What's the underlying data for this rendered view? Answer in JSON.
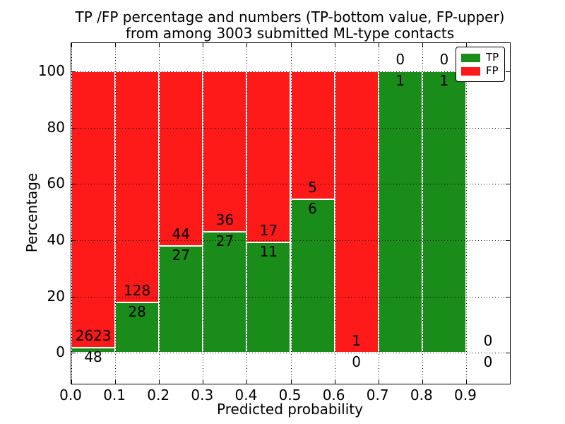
{
  "chart_data": {
    "type": "bar",
    "stacked": true,
    "percentage_scale": true,
    "title_line1": "TP /FP percentage and numbers (TP-bottom value, FP-upper)",
    "title_line2": "from among 3003 submitted ML-type contacts",
    "total_submitted_contacts": 3003,
    "xlabel": "Predicted probability",
    "ylabel": "Percentage",
    "xlim": [
      0.0,
      1.0
    ],
    "ylim": [
      -11,
      110
    ],
    "xticks": [
      "0.0",
      "0.1",
      "0.2",
      "0.3",
      "0.4",
      "0.5",
      "0.6",
      "0.7",
      "0.8",
      "0.9"
    ],
    "yticks": [
      0,
      20,
      40,
      60,
      80,
      100
    ],
    "grid": "dotted-black-over-bars",
    "bar_edge_color": "#ffffff",
    "legend": {
      "position": "upper-right",
      "entries": [
        {
          "label": "TP",
          "color": "#1a8c1a"
        },
        {
          "label": "FP",
          "color": "#ff1a1a"
        }
      ]
    },
    "bins": [
      {
        "range": [
          0.0,
          0.1
        ],
        "tp": 48,
        "fp": 2623,
        "tp_pct": 1.8
      },
      {
        "range": [
          0.1,
          0.2
        ],
        "tp": 28,
        "fp": 128,
        "tp_pct": 17.9
      },
      {
        "range": [
          0.2,
          0.3
        ],
        "tp": 27,
        "fp": 44,
        "tp_pct": 38.0
      },
      {
        "range": [
          0.3,
          0.4
        ],
        "tp": 27,
        "fp": 36,
        "tp_pct": 42.9
      },
      {
        "range": [
          0.4,
          0.5
        ],
        "tp": 11,
        "fp": 17,
        "tp_pct": 39.3
      },
      {
        "range": [
          0.5,
          0.6
        ],
        "tp": 6,
        "fp": 5,
        "tp_pct": 54.5
      },
      {
        "range": [
          0.6,
          0.7
        ],
        "tp": 0,
        "fp": 1,
        "tp_pct": 0.0
      },
      {
        "range": [
          0.7,
          0.8
        ],
        "tp": 1,
        "fp": 0,
        "tp_pct": 100.0
      },
      {
        "range": [
          0.8,
          0.9
        ],
        "tp": 1,
        "fp": 0,
        "tp_pct": 100.0
      },
      {
        "range": [
          0.9,
          1.0
        ],
        "tp": 0,
        "fp": 0,
        "tp_pct": null
      }
    ]
  }
}
